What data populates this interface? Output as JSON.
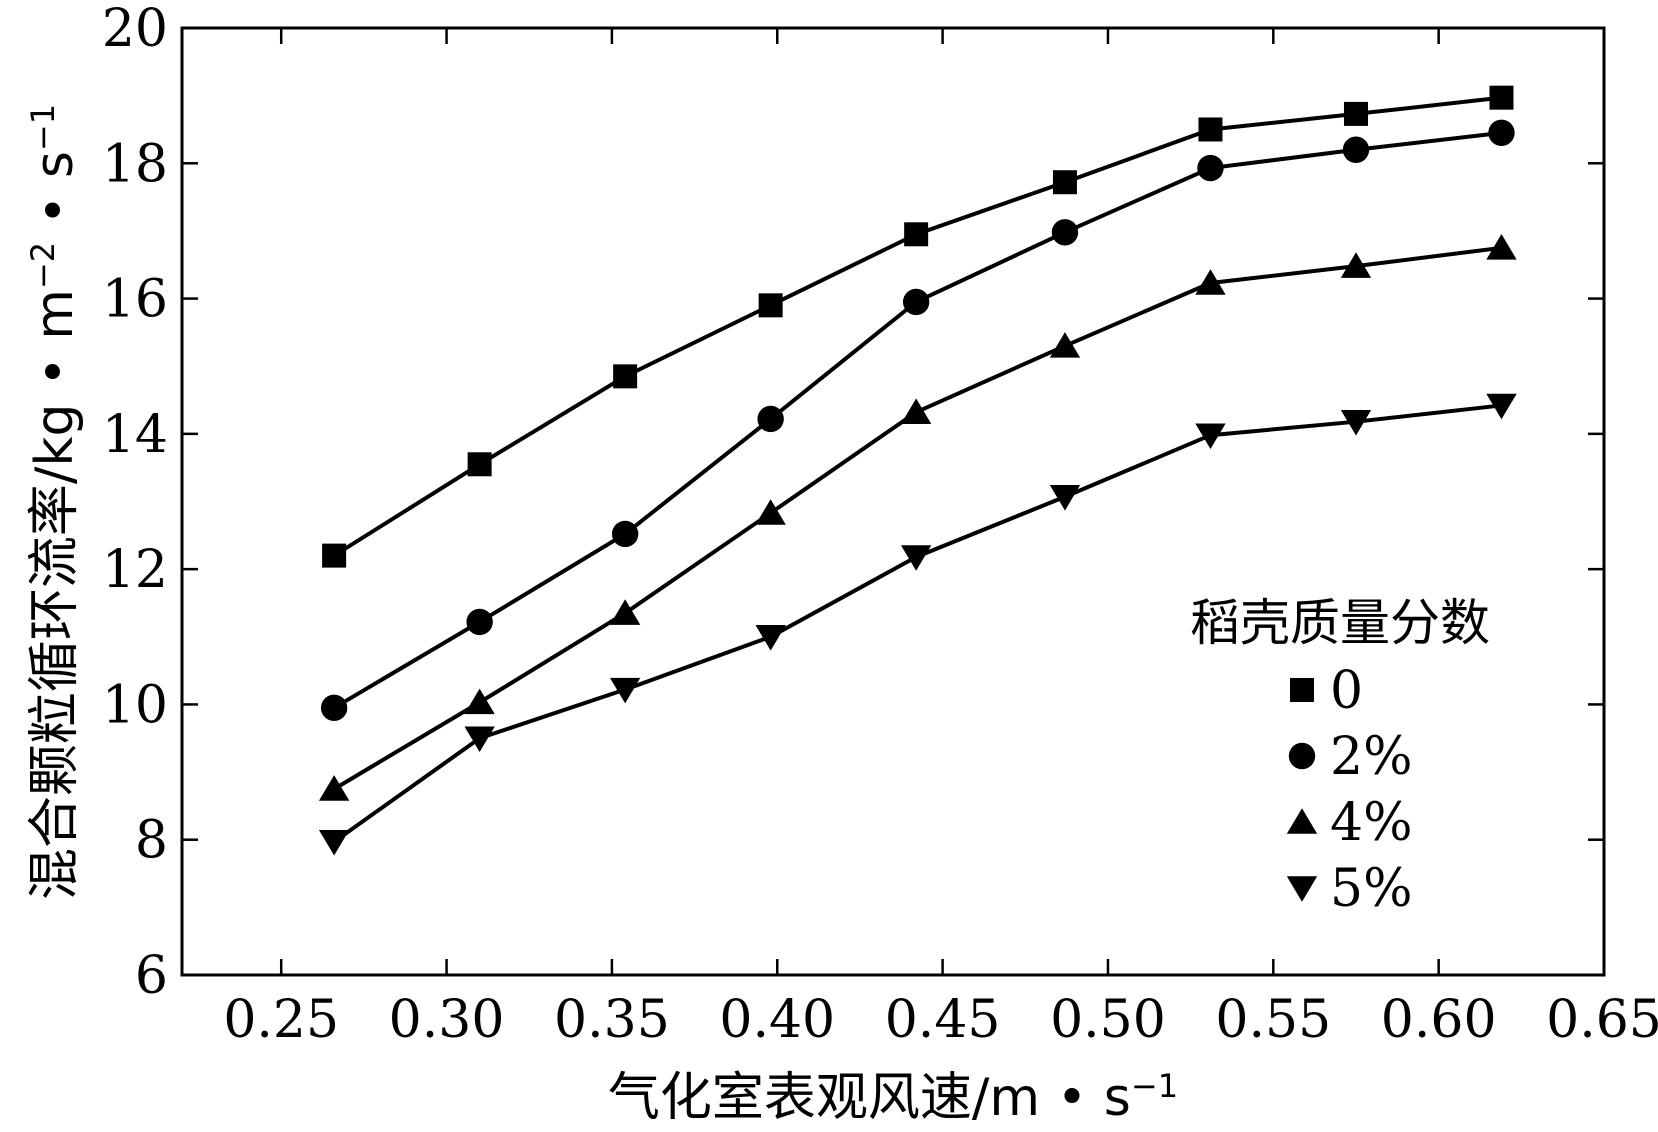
{
  "chart_data": {
    "type": "line",
    "xlabel": "气化室表观风速/m • s",
    "xlabel_sup": "−1",
    "ylabel": "混合颗粒循环流率/kg • m",
    "ylabel_sup1": "−2",
    "ylabel_mid": " • s",
    "ylabel_sup2": "−1",
    "xlim": [
      0.22,
      0.65
    ],
    "ylim": [
      6,
      20
    ],
    "x_ticks": [
      "0.25",
      "0.30",
      "0.35",
      "0.40",
      "0.45",
      "0.50",
      "0.55",
      "0.60",
      "0.65"
    ],
    "y_ticks": [
      "6",
      "8",
      "10",
      "12",
      "14",
      "16",
      "18",
      "20"
    ],
    "x": [
      0.266,
      0.31,
      0.354,
      0.398,
      0.442,
      0.487,
      0.531,
      0.575,
      0.619
    ],
    "legend_title": "稻壳质量分数",
    "legend_position": "right",
    "grid": false,
    "series": [
      {
        "name": "0",
        "marker": "square",
        "values": [
          12.2,
          13.55,
          14.85,
          15.9,
          16.95,
          17.72,
          18.5,
          18.73,
          18.97
        ]
      },
      {
        "name": "2%",
        "marker": "circle",
        "values": [
          9.95,
          11.22,
          12.52,
          14.22,
          15.95,
          16.98,
          17.93,
          18.2,
          18.45
        ]
      },
      {
        "name": "4%",
        "marker": "triangle-up",
        "values": [
          8.75,
          10.03,
          11.35,
          12.83,
          14.32,
          15.3,
          16.23,
          16.48,
          16.75
        ]
      },
      {
        "name": "5%",
        "marker": "triangle-down",
        "values": [
          7.97,
          9.5,
          10.22,
          11.0,
          12.18,
          13.07,
          13.98,
          14.18,
          14.42
        ]
      }
    ],
    "colors": {
      "line": "#000000",
      "marker": "#000000"
    }
  }
}
